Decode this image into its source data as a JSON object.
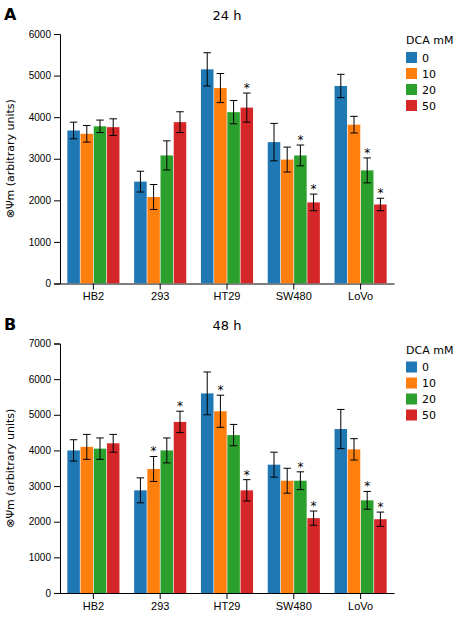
{
  "chart_data": [
    {
      "type": "bar",
      "title": "24 h",
      "panel_label": "A",
      "ylabel": "⊗Ψm (arbitrary units)",
      "categories": [
        "HB2",
        "293",
        "HT29",
        "SW480",
        "LoVo"
      ],
      "series": [
        {
          "name": "0",
          "values": [
            3680,
            2450,
            5150,
            3400,
            4750
          ],
          "errors": [
            200,
            250,
            400,
            450,
            280
          ]
        },
        {
          "name": "10",
          "values": [
            3600,
            2080,
            4700,
            2980,
            3820
          ],
          "errors": [
            200,
            300,
            350,
            300,
            200
          ]
        },
        {
          "name": "20",
          "values": [
            3780,
            3080,
            4120,
            3080,
            2720
          ],
          "errors": [
            150,
            350,
            280,
            250,
            300
          ]
        },
        {
          "name": "50",
          "values": [
            3760,
            3880,
            4230,
            1950,
            1900
          ],
          "errors": [
            200,
            250,
            350,
            200,
            150
          ]
        }
      ],
      "annotations": [
        {
          "text": "*",
          "category": "HT29",
          "series": "50"
        },
        {
          "text": "*",
          "category": "SW480",
          "series": "20"
        },
        {
          "text": "*",
          "category": "SW480",
          "series": "50"
        },
        {
          "text": "*",
          "category": "LoVo",
          "series": "20"
        },
        {
          "text": "*",
          "category": "LoVo",
          "series": "50"
        }
      ],
      "ylim": [
        0,
        6000
      ],
      "yticks": [
        0,
        1000,
        2000,
        3000,
        4000,
        5000,
        6000
      ],
      "grid": false,
      "legend": "upper right",
      "legend_title": "DCA mM"
    },
    {
      "type": "bar",
      "title": "48 h",
      "panel_label": "B",
      "ylabel": "⊗Ψm (arbitrary units)",
      "categories": [
        "HB2",
        "293",
        "HT29",
        "SW480",
        "LoVo"
      ],
      "series": [
        {
          "name": "0",
          "values": [
            4000,
            2880,
            5600,
            3600,
            4600
          ],
          "errors": [
            300,
            350,
            600,
            350,
            550
          ]
        },
        {
          "name": "10",
          "values": [
            4100,
            3480,
            5100,
            3150,
            4030
          ],
          "errors": [
            350,
            350,
            450,
            350,
            300
          ]
        },
        {
          "name": "20",
          "values": [
            4050,
            4000,
            4430,
            3150,
            2600
          ],
          "errors": [
            300,
            350,
            300,
            250,
            250
          ]
        },
        {
          "name": "50",
          "values": [
            4200,
            4800,
            2880,
            2100,
            2070
          ],
          "errors": [
            250,
            300,
            300,
            200,
            200
          ]
        }
      ],
      "annotations": [
        {
          "text": "*",
          "category": "293",
          "series": "10"
        },
        {
          "text": "*",
          "category": "293",
          "series": "50"
        },
        {
          "text": "*",
          "category": "HT29",
          "series": "10"
        },
        {
          "text": "*",
          "category": "HT29",
          "series": "50"
        },
        {
          "text": "*",
          "category": "SW480",
          "series": "20"
        },
        {
          "text": "*",
          "category": "SW480",
          "series": "50"
        },
        {
          "text": "*",
          "category": "LoVo",
          "series": "20"
        },
        {
          "text": "*",
          "category": "LoVo",
          "series": "50"
        }
      ],
      "ylim": [
        0,
        7000
      ],
      "yticks": [
        0,
        1000,
        2000,
        3000,
        4000,
        5000,
        6000,
        7000
      ],
      "grid": false,
      "legend": "upper right",
      "legend_title": "DCA mM"
    }
  ]
}
